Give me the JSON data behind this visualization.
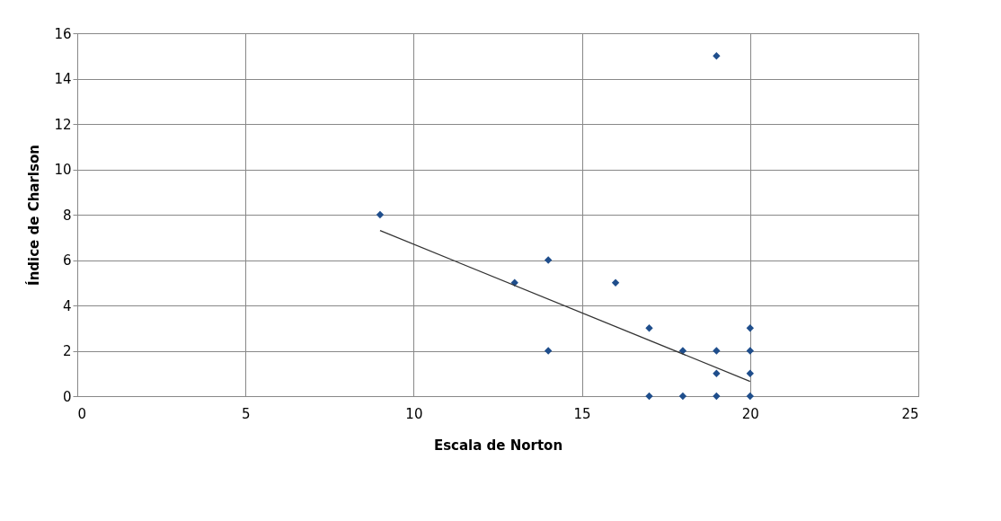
{
  "chart_data": {
    "type": "scatter",
    "xlabel": "Escala de Norton",
    "ylabel": "Índice de Charlson",
    "xlim": [
      0,
      25
    ],
    "xticks": [
      0,
      5,
      10,
      15,
      20,
      25
    ],
    "ylim": [
      0,
      16
    ],
    "yticks": [
      0,
      2,
      4,
      6,
      8,
      10,
      12,
      14,
      16
    ],
    "grid": true,
    "legend": false,
    "series": [
      {
        "color": "#1f4e8c",
        "marker": "diamond",
        "x": [
          9,
          13,
          14,
          14,
          16,
          17,
          17,
          18,
          18,
          19,
          19,
          19,
          19,
          20,
          20,
          20,
          20
        ],
        "values": [
          8,
          5,
          6,
          2,
          5,
          3,
          0,
          2,
          0,
          15,
          2,
          1,
          0,
          3,
          2,
          1,
          0
        ]
      },
      {
        "type": "line",
        "color": "#333333",
        "marker": "none",
        "line_style": "solid",
        "x": [
          9,
          20
        ],
        "values": [
          7.3,
          0.65
        ]
      }
    ]
  }
}
